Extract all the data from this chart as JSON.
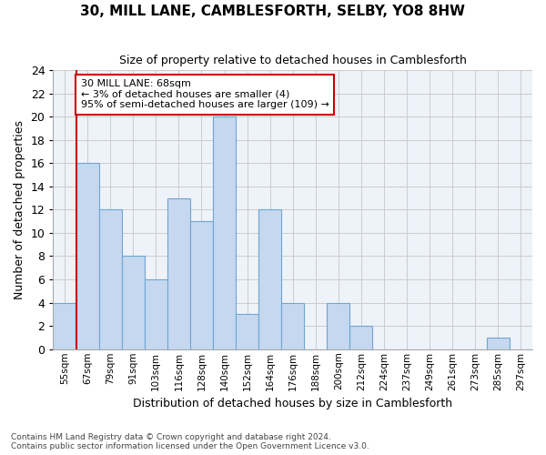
{
  "title": "30, MILL LANE, CAMBLESFORTH, SELBY, YO8 8HW",
  "subtitle": "Size of property relative to detached houses in Camblesforth",
  "xlabel": "Distribution of detached houses by size in Camblesforth",
  "ylabel": "Number of detached properties",
  "categories": [
    "55sqm",
    "67sqm",
    "79sqm",
    "91sqm",
    "103sqm",
    "116sqm",
    "128sqm",
    "140sqm",
    "152sqm",
    "164sqm",
    "176sqm",
    "188sqm",
    "200sqm",
    "212sqm",
    "224sqm",
    "237sqm",
    "249sqm",
    "261sqm",
    "273sqm",
    "285sqm",
    "297sqm"
  ],
  "values": [
    4,
    16,
    12,
    8,
    6,
    13,
    11,
    20,
    3,
    12,
    4,
    0,
    4,
    2,
    0,
    0,
    0,
    0,
    0,
    1,
    0
  ],
  "bar_color": "#c5d8f0",
  "bar_edge_color": "#6ea6d0",
  "ylim": [
    0,
    24
  ],
  "yticks": [
    0,
    2,
    4,
    6,
    8,
    10,
    12,
    14,
    16,
    18,
    20,
    22,
    24
  ],
  "vline_x": 1,
  "vline_color": "#cc0000",
  "annotation_text": "30 MILL LANE: 68sqm\n← 3% of detached houses are smaller (4)\n95% of semi-detached houses are larger (109) →",
  "annotation_box_color": "#ffffff",
  "annotation_box_edge": "#cc0000",
  "background_color": "#eef2f9",
  "footer_line1": "Contains HM Land Registry data © Crown copyright and database right 2024.",
  "footer_line2": "Contains public sector information licensed under the Open Government Licence v3.0."
}
